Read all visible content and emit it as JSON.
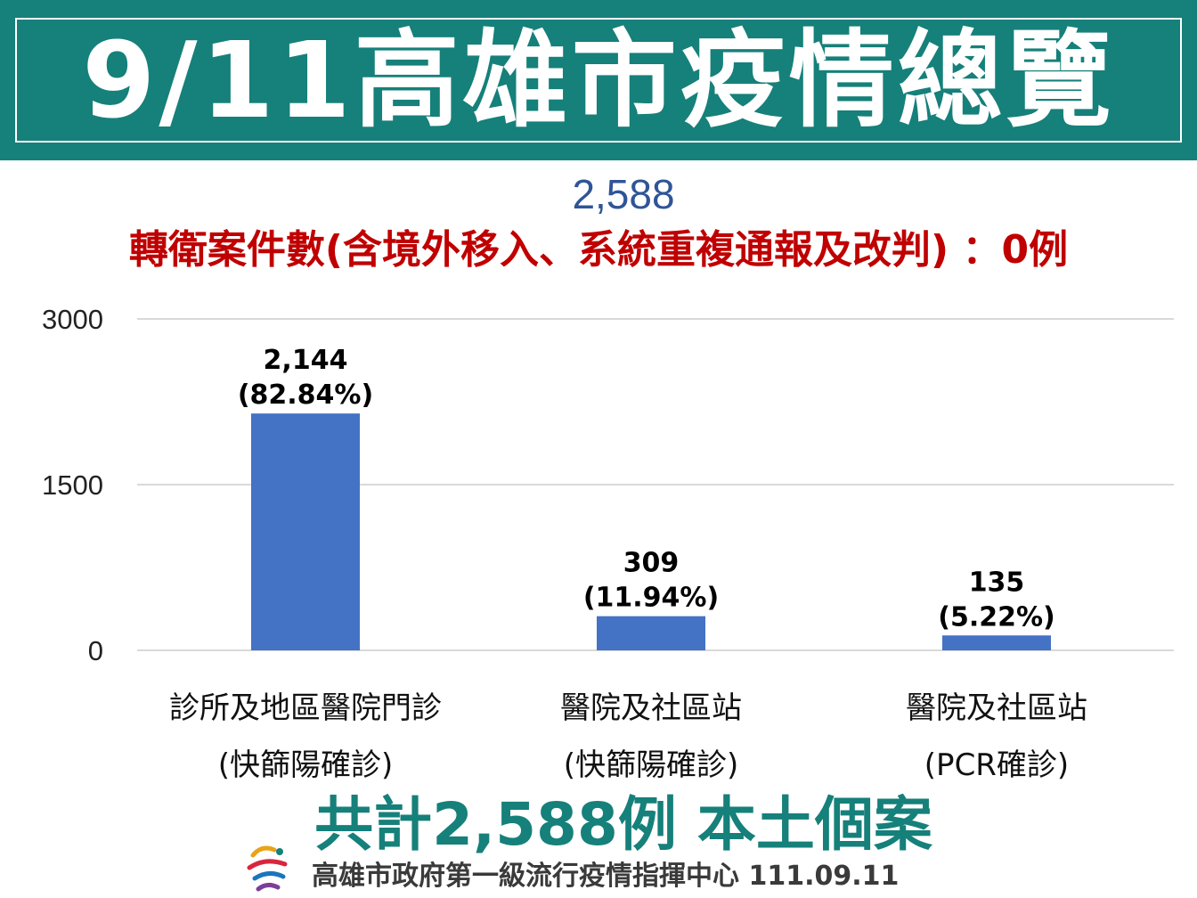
{
  "header": {
    "title": "9/11高雄市疫情總覽"
  },
  "summary": {
    "total": "2,588",
    "transfer_line": "轉衛案件數(含境外移入、系統重複通報及改判) ：0例"
  },
  "chart_data": {
    "type": "bar",
    "categories": [
      [
        "診所及地區醫院門診",
        "(快篩陽確診)"
      ],
      [
        "醫院及社區站",
        "(快篩陽確診)"
      ],
      [
        "醫院及社區站",
        "(PCR確診)"
      ]
    ],
    "values": [
      2144,
      309,
      135
    ],
    "value_labels": [
      "2,144",
      "309",
      "135"
    ],
    "percent_labels": [
      "(82.84%)",
      "(11.94%)",
      "(5.22%)"
    ],
    "yticks": [
      0,
      1500,
      3000
    ],
    "ytick_labels": [
      "0",
      "1500",
      "3000"
    ],
    "ylim": [
      0,
      3000
    ],
    "grid": true,
    "colors": {
      "bar": "#4472C4",
      "grid": "#D9D9D9",
      "label": "#000000"
    }
  },
  "footer": {
    "total_line": "共計2,588例 本土個案",
    "credit": "高雄市政府第一級流行疫情指揮中心 111.09.11"
  },
  "theme": {
    "banner": "#16807A",
    "total_color": "#2F5597",
    "transfer_color": "#C00000"
  }
}
